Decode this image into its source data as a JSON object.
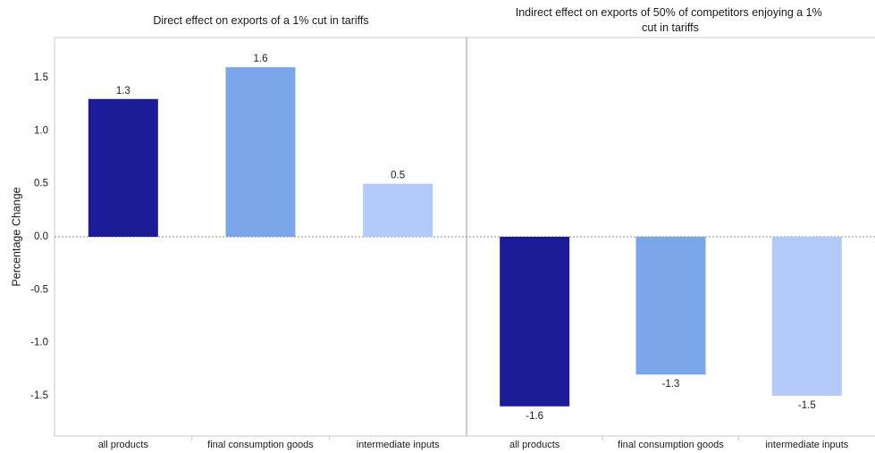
{
  "chart_data": {
    "type": "bar",
    "ylabel": "Percentage Change",
    "ylim": [
      -1.88,
      1.88
    ],
    "yticks": [
      "1.5",
      "1.0",
      "0.5",
      "0.0",
      "-0.5",
      "-1.0",
      "-1.5"
    ],
    "grid": false,
    "colors": [
      "#1c1c99",
      "#7aa5e8",
      "#b3caf8"
    ],
    "panels": [
      {
        "title": "Direct effect on exports of a 1% cut in tariffs",
        "categories": [
          "all products",
          "final consumption goods",
          "intermediate inputs"
        ],
        "values": [
          1.3,
          1.6,
          0.5
        ],
        "value_labels": [
          "1.3",
          "1.6",
          "0.5"
        ]
      },
      {
        "title": "Indirect effect on exports of 50% of competitors enjoying a 1% cut in tariffs",
        "categories": [
          "all products",
          "final consumption goods",
          "intermediate inputs"
        ],
        "values": [
          -1.6,
          -1.3,
          -1.5
        ],
        "value_labels": [
          "-1.6",
          "-1.3",
          "-1.5"
        ]
      }
    ]
  }
}
